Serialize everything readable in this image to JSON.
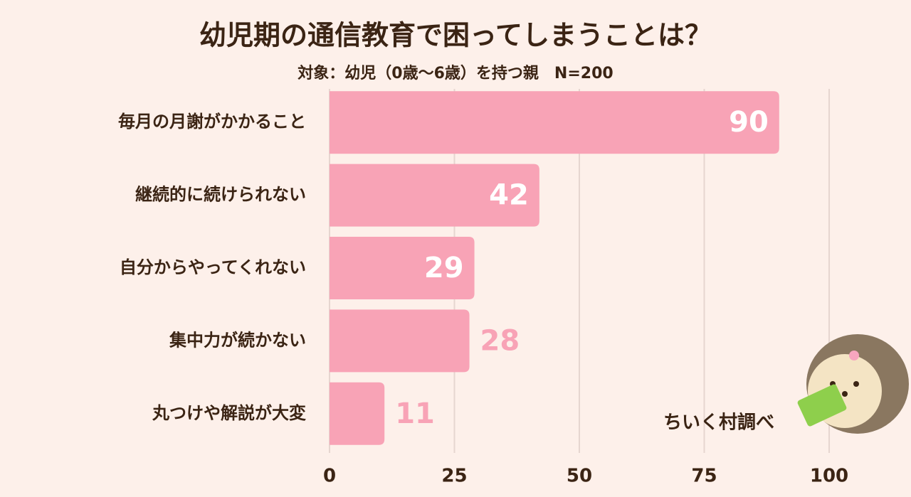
{
  "chart_data": {
    "type": "bar",
    "orientation": "horizontal",
    "title": "幼児期の通信教育で困ってしまうことは？",
    "subtitle": "対象：幼児（0歳～6歳）を持つ親　N=200",
    "categories": [
      "毎月の月謝がかかること",
      "継続的に続けられない",
      "自分からやってくれない",
      "集中力が続かない",
      "丸つけや解説が大変"
    ],
    "values": [
      90,
      42,
      29,
      28,
      11
    ],
    "color": "#f8a3b6",
    "xlim": [
      0,
      100
    ],
    "xticks": [
      0,
      25,
      50,
      75,
      100
    ],
    "grid": true,
    "annotation": "ちいく村調べ"
  }
}
